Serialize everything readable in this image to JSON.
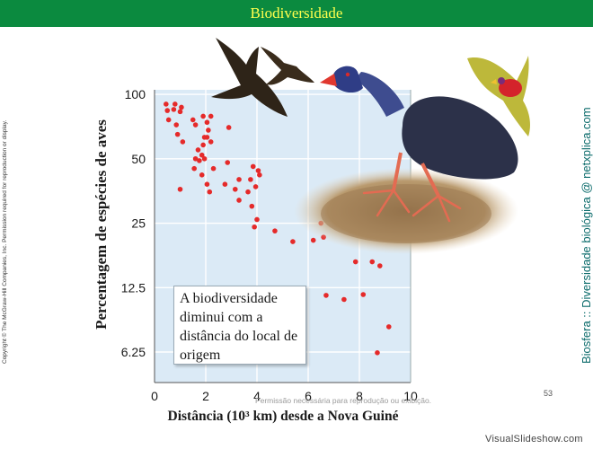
{
  "slide": {
    "title": "Biodiversidade",
    "copyright": "Copyright © The McGraw-Hill Companies, Inc. Permission required for reproduction or display.",
    "side_credit": "Biosfera :: Diversidade biológica @ netxplica.com",
    "notice": "Permissão necessária para reprodução ou exibição.",
    "page_number": "53",
    "watermark": "VisualSlideshow.com"
  },
  "chart_data": {
    "type": "scatter",
    "xlabel": "Distância (10³ km) desde a Nova Guiné",
    "ylabel": "Percentagem de espécies de aves",
    "x_ticks": [
      "0",
      "2",
      "4",
      "6",
      "8",
      "10"
    ],
    "y_ticks": [
      "100",
      "50",
      "25",
      "12.5",
      "6.25"
    ],
    "xlim": [
      0,
      10
    ],
    "ylim": [
      4.5,
      105
    ],
    "y_scale": "log",
    "grid": true,
    "annotation": "A biodiversidade diminui com a distância do local de origem",
    "colors": {
      "points": "#e52a2a",
      "plot_bg": "#dbeaf6",
      "title_bg": "#0b8a3f",
      "title_text": "#ffff4d"
    },
    "points": [
      [
        0.45,
        90
      ],
      [
        0.5,
        84
      ],
      [
        0.55,
        76
      ],
      [
        0.75,
        85
      ],
      [
        0.8,
        90
      ],
      [
        0.85,
        72
      ],
      [
        1.0,
        83
      ],
      [
        1.05,
        87
      ],
      [
        0.9,
        65
      ],
      [
        1.1,
        60
      ],
      [
        1.0,
        36
      ],
      [
        1.5,
        76
      ],
      [
        1.6,
        72
      ],
      [
        1.9,
        79
      ],
      [
        2.05,
        74
      ],
      [
        2.2,
        79
      ],
      [
        2.1,
        68
      ],
      [
        1.6,
        50
      ],
      [
        1.85,
        52
      ],
      [
        1.9,
        58
      ],
      [
        1.95,
        63
      ],
      [
        2.05,
        63
      ],
      [
        2.2,
        60
      ],
      [
        1.55,
        45
      ],
      [
        1.75,
        49
      ],
      [
        1.7,
        55
      ],
      [
        1.85,
        42
      ],
      [
        1.95,
        50
      ],
      [
        2.15,
        35
      ],
      [
        2.05,
        38
      ],
      [
        2.3,
        45
      ],
      [
        2.9,
        70
      ],
      [
        2.85,
        48
      ],
      [
        3.3,
        40
      ],
      [
        2.75,
        38
      ],
      [
        3.3,
        32
      ],
      [
        3.15,
        36
      ],
      [
        3.85,
        46
      ],
      [
        4.05,
        44
      ],
      [
        4.1,
        42
      ],
      [
        3.75,
        40
      ],
      [
        3.95,
        37
      ],
      [
        3.65,
        35
      ],
      [
        3.8,
        30
      ],
      [
        4.0,
        26
      ],
      [
        3.9,
        24
      ],
      [
        4.7,
        23
      ],
      [
        5.4,
        20.5
      ],
      [
        6.2,
        20.8
      ],
      [
        6.5,
        25
      ],
      [
        6.6,
        21.5
      ],
      [
        7.65,
        23
      ],
      [
        7.85,
        16.5
      ],
      [
        8.5,
        16.5
      ],
      [
        8.8,
        15.8
      ],
      [
        6.7,
        11.5
      ],
      [
        7.4,
        11
      ],
      [
        8.15,
        11.6
      ],
      [
        9.15,
        8.2
      ],
      [
        8.7,
        6.2
      ]
    ]
  }
}
